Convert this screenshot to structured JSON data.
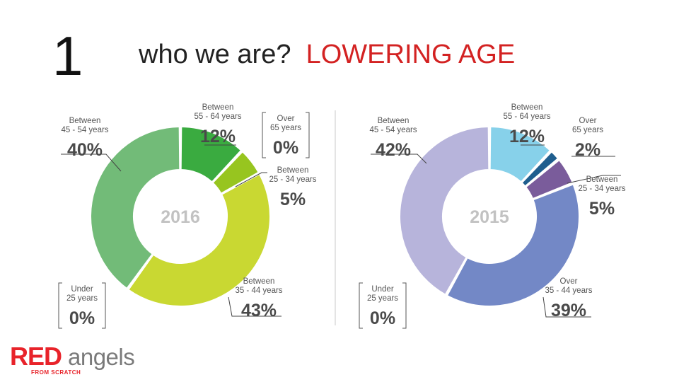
{
  "slide": {
    "number": "1",
    "title_main": "who we are?",
    "title_accent": "LOWERING AGE"
  },
  "logo": {
    "red_part": "RED",
    "grey_part": "angels",
    "tagline": "FROM SCRATCH"
  },
  "colors": {
    "title_accent": "#d32222",
    "logo_red": "#e8232a"
  },
  "chart_data": [
    {
      "type": "pie",
      "center_label": "2016",
      "slices": [
        {
          "label": [
            "Between",
            "55 - 64 years"
          ],
          "value": 12,
          "value_label": "12%",
          "color": "#3aab40"
        },
        {
          "label": [
            "Between",
            "25 - 34 years"
          ],
          "value": 5,
          "value_label": "5%",
          "color": "#97c51f"
        },
        {
          "label": [
            "Between",
            "35 - 44 years"
          ],
          "value": 43,
          "value_label": "43%",
          "color": "#c9d832"
        },
        {
          "label": [
            "Between",
            "45 - 54 years"
          ],
          "value": 40,
          "value_label": "40%",
          "color": "#72bb78"
        },
        {
          "label": [
            "Under",
            "25 years"
          ],
          "value": 0,
          "value_label": "0%",
          "color": "#cccccc"
        },
        {
          "label": [
            "Over",
            "65 years"
          ],
          "value": 0,
          "value_label": "0%",
          "color": "#cccccc"
        }
      ]
    },
    {
      "type": "pie",
      "center_label": "2015",
      "slices": [
        {
          "label": [
            "Between",
            "55 - 64 years"
          ],
          "value": 12,
          "value_label": "12%",
          "color": "#87d1ea"
        },
        {
          "label": [
            "Over",
            "65 years"
          ],
          "value": 2,
          "value_label": "2%",
          "color": "#1f5e8e"
        },
        {
          "label": [
            "Between",
            "25 - 34 years"
          ],
          "value": 5,
          "value_label": "5%",
          "color": "#7a5c9b"
        },
        {
          "label": [
            "Over",
            "35 - 44 years"
          ],
          "value": 39,
          "value_label": "39%",
          "color": "#7388c6"
        },
        {
          "label": [
            "Between",
            "45 - 54 years"
          ],
          "value": 42,
          "value_label": "42%",
          "color": "#b7b4db"
        },
        {
          "label": [
            "Under",
            "25 years"
          ],
          "value": 0,
          "value_label": "0%",
          "color": "#cccccc"
        }
      ]
    }
  ]
}
